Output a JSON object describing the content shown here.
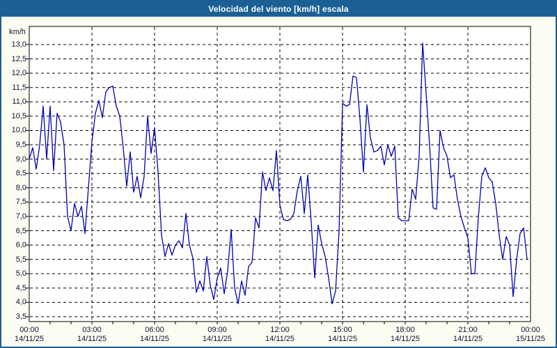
{
  "window": {
    "title": "Velocidad del viento [km/h] escala"
  },
  "chart_data": {
    "type": "line",
    "title": "Velocidad del viento [km/h] escala",
    "ylabel": "km/h",
    "unit_label": "km/h",
    "ylim": [
      3.5,
      13.0
    ],
    "ytick_step": 0.5,
    "yticks": [
      "13,0",
      "12,5",
      "12,0",
      "11,5",
      "11,0",
      "10,5",
      "10,0",
      "9,5",
      "9,0",
      "8,5",
      "8,0",
      "7,5",
      "7,0",
      "6,5",
      "6,0",
      "5,5",
      "5,0",
      "4,5",
      "4,0",
      "3,5"
    ],
    "xticks": [
      {
        "time": "00:00",
        "date": "14/11/25"
      },
      {
        "time": "03:00",
        "date": "14/11/25"
      },
      {
        "time": "06:00",
        "date": "14/11/25"
      },
      {
        "time": "09:00",
        "date": "14/11/25"
      },
      {
        "time": "12:00",
        "date": "14/11/25"
      },
      {
        "time": "15:00",
        "date": "14/11/25"
      },
      {
        "time": "18:00",
        "date": "14/11/25"
      },
      {
        "time": "21:00",
        "date": "14/11/25"
      },
      {
        "time": "00:00",
        "date": "15/11/25"
      }
    ],
    "x_start_hour": 0,
    "x_end_hour": 24,
    "sample_interval_minutes": 10,
    "grid": "dashed",
    "legend": "none",
    "colors": {
      "line": "#0000b4",
      "grid": "#000000",
      "plot_background": "#ffffff",
      "panel_background": "#fcfcf2",
      "title_bar": "#1b6095",
      "title_text": "#ffffff",
      "frame": "#1c5f93",
      "axis_text": "#101035"
    },
    "values": [
      9.0,
      9.4,
      8.65,
      9.5,
      10.85,
      9.0,
      10.85,
      8.6,
      10.6,
      10.3,
      9.5,
      7.0,
      6.5,
      7.45,
      7.0,
      7.35,
      6.4,
      8.0,
      9.6,
      10.6,
      11.05,
      10.45,
      11.35,
      11.5,
      11.55,
      10.85,
      10.5,
      9.4,
      8.05,
      9.25,
      7.85,
      8.4,
      7.65,
      8.4,
      10.5,
      9.2,
      10.1,
      8.55,
      6.35,
      5.6,
      6.05,
      5.65,
      6.0,
      6.15,
      5.9,
      7.1,
      6.0,
      5.55,
      4.35,
      4.75,
      4.4,
      5.6,
      4.6,
      4.1,
      4.85,
      5.2,
      4.3,
      5.1,
      6.55,
      4.5,
      3.95,
      4.75,
      4.25,
      5.25,
      5.4,
      6.95,
      6.6,
      8.55,
      7.9,
      8.35,
      7.9,
      9.3,
      7.4,
      6.9,
      6.85,
      6.9,
      7.1,
      7.9,
      8.4,
      7.1,
      8.45,
      6.8,
      4.85,
      6.7,
      6.05,
      5.6,
      4.85,
      3.95,
      4.4,
      6.5,
      10.95,
      10.85,
      10.9,
      11.9,
      11.85,
      10.4,
      8.55,
      10.9,
      9.75,
      9.25,
      9.3,
      9.45,
      8.8,
      9.5,
      9.1,
      9.45,
      6.95,
      6.85,
      6.85,
      6.85,
      7.95,
      7.6,
      9.1,
      13.05,
      11.3,
      9.5,
      7.3,
      7.25,
      10.0,
      9.4,
      9.1,
      8.35,
      8.45,
      7.6,
      7.0,
      6.6,
      6.25,
      5.0,
      5.0,
      6.95,
      8.4,
      8.7,
      8.35,
      8.2,
      7.45,
      6.35,
      5.5,
      6.3,
      6.0,
      4.2,
      5.5,
      6.4,
      6.6,
      5.5
    ]
  }
}
